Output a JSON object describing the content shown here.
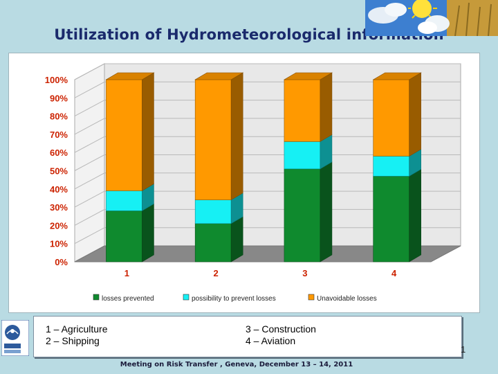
{
  "slide": {
    "title": "Utilization of Hydrometeorological information",
    "footer": "Meeting on Risk Transfer , Geneva, December 13 – 14, 2011",
    "page_number": "1"
  },
  "legend": {
    "sector_1": "1 – Agriculture",
    "sector_2": "2 – Shipping",
    "sector_3": "3 – Construction",
    "sector_4": "4 – Aviation"
  },
  "chart_data": {
    "type": "bar",
    "stacked": true,
    "percent_axis": true,
    "categories": [
      "1",
      "2",
      "3",
      "4"
    ],
    "series": [
      {
        "name": "losses prevented",
        "values": [
          28,
          21,
          51,
          47
        ],
        "color": "#0f8a2e"
      },
      {
        "name": "possibility to prevent losses",
        "values": [
          11,
          13,
          15,
          11
        ],
        "color": "#16f0f4"
      },
      {
        "name": "Unavoidable losses",
        "values": [
          61,
          66,
          34,
          42
        ],
        "color": "#ff9900"
      }
    ],
    "y_ticks": [
      "0%",
      "10%",
      "20%",
      "30%",
      "40%",
      "50%",
      "60%",
      "70%",
      "80%",
      "90%",
      "100%"
    ],
    "ylim": [
      0,
      100
    ],
    "grid": true,
    "legend_position": "bottom"
  },
  "colors": {
    "title": "#1a2a6c",
    "axis_labels": "#cc2200",
    "floor": "#888888",
    "plot_back": "#e8e8e8"
  },
  "icons": {
    "logo": "organization-logo-icon",
    "weather": "weather-sun-cloud-icon"
  }
}
